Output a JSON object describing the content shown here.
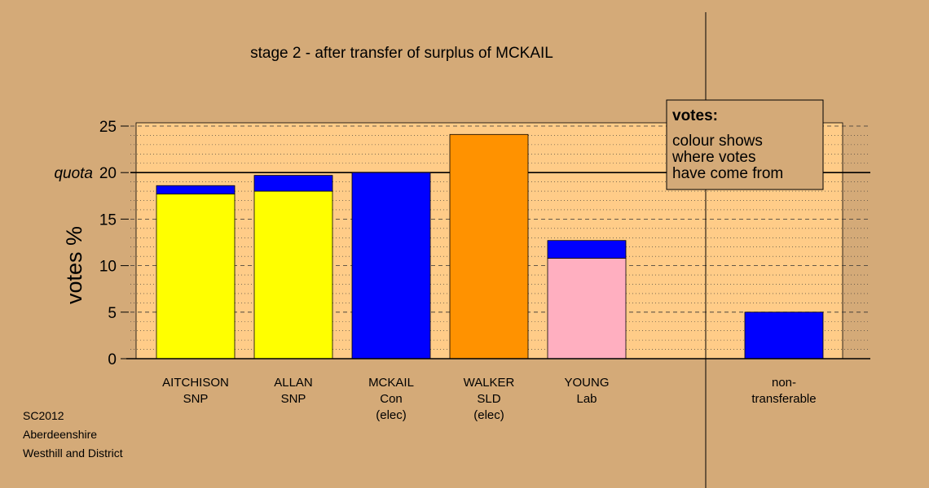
{
  "chart_data": {
    "type": "bar",
    "title": "stage 2 - after transfer of surplus of MCKAIL",
    "ylabel": "votes %",
    "ylim": [
      0,
      25
    ],
    "yticks": [
      0,
      5,
      10,
      15,
      20,
      25
    ],
    "quota": {
      "label": "quota",
      "value": 20
    },
    "candidates": [
      {
        "name": "AITCHISON",
        "lines": [
          "SNP"
        ],
        "segments": [
          {
            "source": "own",
            "color": "#ffff00",
            "value": 17.7
          },
          {
            "source": "transfer",
            "color": "#0000ff",
            "value": 0.9
          }
        ]
      },
      {
        "name": "ALLAN",
        "lines": [
          "SNP"
        ],
        "segments": [
          {
            "source": "own",
            "color": "#ffff00",
            "value": 18.0
          },
          {
            "source": "transfer",
            "color": "#0000ff",
            "value": 1.7
          }
        ]
      },
      {
        "name": "MCKAIL",
        "lines": [
          "Con",
          "(elec)"
        ],
        "segments": [
          {
            "source": "own",
            "color": "#0000ff",
            "value": 20.0
          }
        ]
      },
      {
        "name": "WALKER",
        "lines": [
          "SLD",
          "(elec)"
        ],
        "segments": [
          {
            "source": "own",
            "color": "#ff9200",
            "value": 24.1
          }
        ]
      },
      {
        "name": "YOUNG",
        "lines": [
          "Lab"
        ],
        "segments": [
          {
            "source": "own",
            "color": "#ffafc0",
            "value": 10.8
          },
          {
            "source": "transfer",
            "color": "#0000ff",
            "value": 1.9
          }
        ]
      }
    ],
    "non_transferable": {
      "name": "non-",
      "lines": [
        "transferable"
      ],
      "value": 5.0,
      "color": "#0000ff"
    },
    "legend": {
      "title": "votes:",
      "lines": [
        "colour shows",
        "where votes",
        "have come from"
      ],
      "placement": "top-right"
    },
    "colors": {
      "background": "#d4aa78",
      "plot_area": "#ffcc88"
    }
  },
  "footer": {
    "lines": [
      "SC2012",
      "Aberdeenshire",
      "Westhill and District"
    ]
  }
}
